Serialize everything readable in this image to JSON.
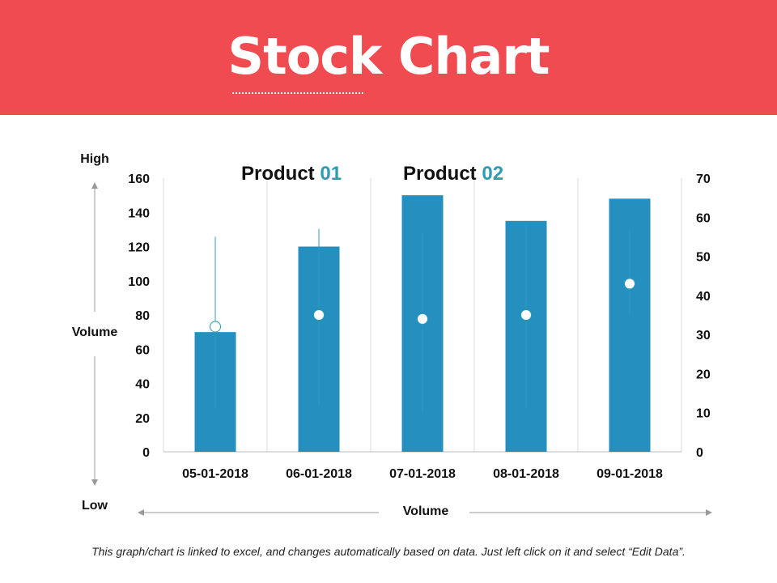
{
  "title": "Stock Chart",
  "footnote": "This graph/chart is linked to excel, and changes automatically based on data. Just left click on it and select “Edit Data”.",
  "colors": {
    "header": "#ef4b50",
    "bar": "#2590c0",
    "accent": "#2c9cb5",
    "axis_text": "#111111",
    "grid": "#d9d9d9"
  },
  "chart_data": {
    "type": "bar",
    "categories": [
      "05-01-2018",
      "06-01-2018",
      "07-01-2018",
      "08-01-2018",
      "09-01-2018"
    ],
    "series": [
      {
        "name": "Volume",
        "axis": "left",
        "values": [
          70,
          120,
          150,
          135,
          148
        ]
      }
    ],
    "stock": {
      "axis": "right",
      "high": [
        55,
        57,
        56,
        58,
        57
      ],
      "low": [
        11,
        12,
        10,
        11,
        35
      ],
      "close": [
        32,
        35,
        34,
        35,
        43
      ]
    },
    "ylim_left": [
      0,
      160
    ],
    "yticks_left": [
      "0",
      "20",
      "40",
      "60",
      "80",
      "100",
      "120",
      "140",
      "160"
    ],
    "ylim_right": [
      0,
      70
    ],
    "yticks_right": [
      "0",
      "10",
      "20",
      "30",
      "40",
      "50",
      "60",
      "70"
    ],
    "legend": [
      {
        "name": "Product",
        "number": "01"
      },
      {
        "name": "Product",
        "number": "02"
      }
    ],
    "ylabel_top": "High",
    "ylabel_mid": "Volume",
    "ylabel_bottom": "Low",
    "xlabel": "Volume",
    "grid": true
  }
}
